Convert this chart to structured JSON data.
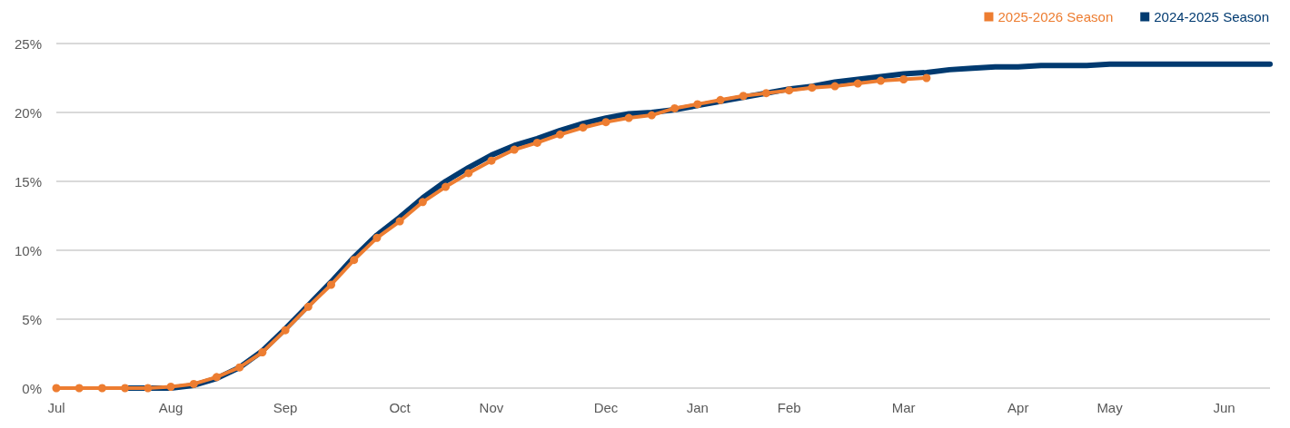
{
  "chart_data": {
    "type": "line",
    "categories": [
      "Jul",
      null,
      null,
      null,
      null,
      "Aug",
      null,
      null,
      null,
      null,
      "Sep",
      null,
      null,
      null,
      null,
      "Oct",
      null,
      null,
      null,
      "Nov",
      null,
      null,
      null,
      null,
      "Dec",
      null,
      null,
      null,
      "Jan",
      null,
      null,
      null,
      "Feb",
      null,
      null,
      null,
      null,
      "Mar",
      null,
      null,
      null,
      null,
      "Apr",
      null,
      null,
      null,
      "May",
      null,
      null,
      null,
      null,
      "Jun",
      null,
      null
    ],
    "series": [
      {
        "name": "2025-2026 Season",
        "color": "#ed7d31",
        "marker": "circle",
        "values": [
          0,
          0,
          0,
          0,
          0,
          0.1,
          0.3,
          0.8,
          1.5,
          2.6,
          4.2,
          5.9,
          7.5,
          9.3,
          10.9,
          12.1,
          13.5,
          14.6,
          15.6,
          16.5,
          17.3,
          17.8,
          18.4,
          18.9,
          19.3,
          19.6,
          19.8,
          20.3,
          20.6,
          20.9,
          21.2,
          21.4,
          21.6,
          21.8,
          21.9,
          22.1,
          22.3,
          22.4,
          22.5,
          null,
          null,
          null,
          null,
          null,
          null,
          null,
          null,
          null,
          null,
          null,
          null,
          null,
          null,
          null
        ]
      },
      {
        "name": "2024-2025 Season",
        "color": "#003a70",
        "marker": "none",
        "values": [
          null,
          null,
          null,
          0,
          0,
          0,
          0.2,
          0.7,
          1.5,
          2.7,
          4.3,
          6.0,
          7.7,
          9.5,
          11.1,
          12.4,
          13.8,
          15.0,
          16.0,
          16.9,
          17.6,
          18.1,
          18.7,
          19.2,
          19.6,
          19.9,
          20.0,
          20.2,
          20.5,
          20.8,
          21.1,
          21.4,
          21.7,
          21.9,
          22.2,
          22.4,
          22.6,
          22.8,
          22.9,
          23.1,
          23.2,
          23.3,
          23.3,
          23.4,
          23.4,
          23.4,
          23.5,
          23.5,
          23.5,
          23.5,
          23.5,
          23.5,
          23.5,
          23.5
        ]
      }
    ],
    "ylim": [
      0,
      25
    ],
    "yticks": [
      {
        "value": 0,
        "label": "0%"
      },
      {
        "value": 5,
        "label": "5%"
      },
      {
        "value": 10,
        "label": "10%"
      },
      {
        "value": 15,
        "label": "15%"
      },
      {
        "value": 20,
        "label": "20%"
      },
      {
        "value": 25,
        "label": "25%"
      }
    ],
    "grid": "y",
    "legend": "top right"
  }
}
